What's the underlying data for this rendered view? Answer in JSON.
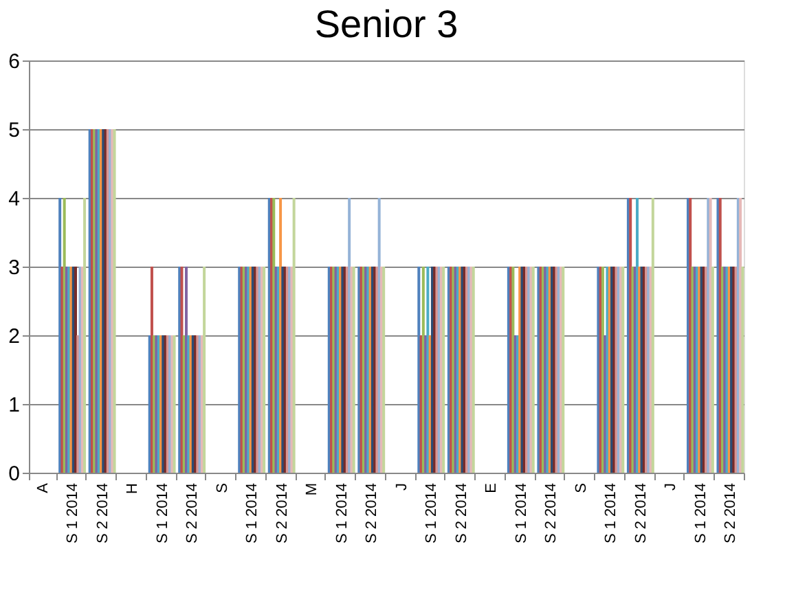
{
  "chart_data": {
    "type": "bar",
    "title": "Senior 3",
    "categories": [
      "A",
      "S 1 2014",
      "S 2 2014",
      "H",
      "S 1 2014",
      "S 2 2014",
      "S",
      "S 1 2014",
      "S 2 2014",
      "M",
      "S 1 2014",
      "S 2 2014",
      "J",
      "S 1 2014",
      "S 2 2014",
      "E",
      "S 1 2014",
      "S 2 2014",
      "S",
      "S 1 2014",
      "S 2 2014",
      "J",
      "S 1 2014",
      "S 2 2014"
    ],
    "ylim": [
      0,
      6
    ],
    "yticks": [
      0,
      1,
      2,
      3,
      4,
      5,
      6
    ],
    "grid": "y",
    "legend": false,
    "series": [
      {
        "color": "#4f81bd",
        "values": [
          null,
          4,
          5,
          null,
          2,
          3,
          null,
          3,
          4,
          null,
          3,
          3,
          null,
          3,
          3,
          null,
          3,
          3,
          null,
          3,
          4,
          null,
          4,
          4
        ]
      },
      {
        "color": "#c0504d",
        "values": [
          null,
          3,
          5,
          null,
          3,
          3,
          null,
          3,
          4,
          null,
          3,
          3,
          null,
          2,
          3,
          null,
          3,
          3,
          null,
          3,
          4,
          null,
          4,
          4
        ]
      },
      {
        "color": "#9bbb59",
        "values": [
          null,
          4,
          5,
          null,
          2,
          2,
          null,
          3,
          4,
          null,
          3,
          3,
          null,
          3,
          3,
          null,
          3,
          3,
          null,
          3,
          3,
          null,
          3,
          3
        ]
      },
      {
        "color": "#8064a2",
        "values": [
          null,
          3,
          5,
          null,
          2,
          3,
          null,
          3,
          3,
          null,
          3,
          3,
          null,
          2,
          3,
          null,
          2,
          3,
          null,
          2,
          3,
          null,
          3,
          3
        ]
      },
      {
        "color": "#4bacc6",
        "values": [
          null,
          3,
          5,
          null,
          2,
          2,
          null,
          3,
          3,
          null,
          3,
          3,
          null,
          3,
          3,
          null,
          2,
          3,
          null,
          3,
          4,
          null,
          3,
          3
        ]
      },
      {
        "color": "#f79646",
        "values": [
          null,
          3,
          5,
          null,
          2,
          2,
          null,
          3,
          4,
          null,
          3,
          3,
          null,
          2,
          3,
          null,
          3,
          3,
          null,
          3,
          3,
          null,
          3,
          3
        ]
      },
      {
        "color": "#2c4d75",
        "values": [
          null,
          3,
          5,
          null,
          2,
          2,
          null,
          3,
          3,
          null,
          3,
          3,
          null,
          3,
          3,
          null,
          3,
          3,
          null,
          3,
          3,
          null,
          3,
          3
        ]
      },
      {
        "color": "#772c2a",
        "values": [
          null,
          3,
          5,
          null,
          2,
          2,
          null,
          3,
          3,
          null,
          3,
          3,
          null,
          3,
          3,
          null,
          3,
          3,
          null,
          3,
          3,
          null,
          3,
          3
        ]
      },
      {
        "color": "#d99694",
        "values": [
          null,
          2,
          5,
          null,
          2,
          2,
          null,
          3,
          3,
          null,
          3,
          3,
          null,
          3,
          3,
          null,
          3,
          3,
          null,
          3,
          3,
          null,
          3,
          3
        ]
      },
      {
        "color": "#95b3d7",
        "values": [
          null,
          3,
          5,
          null,
          2,
          2,
          null,
          3,
          3,
          null,
          4,
          4,
          null,
          3,
          3,
          null,
          3,
          3,
          null,
          3,
          3,
          null,
          4,
          4
        ]
      },
      {
        "color": "#e6b9b8",
        "values": [
          null,
          3,
          5,
          null,
          2,
          2,
          null,
          3,
          3,
          null,
          3,
          3,
          null,
          3,
          3,
          null,
          3,
          3,
          null,
          3,
          3,
          null,
          4,
          4
        ]
      },
      {
        "color": "#c3d69b",
        "values": [
          null,
          4,
          5,
          null,
          2,
          3,
          null,
          3,
          4,
          null,
          3,
          3,
          null,
          3,
          3,
          null,
          3,
          3,
          null,
          3,
          4,
          null,
          3,
          3
        ]
      }
    ]
  }
}
